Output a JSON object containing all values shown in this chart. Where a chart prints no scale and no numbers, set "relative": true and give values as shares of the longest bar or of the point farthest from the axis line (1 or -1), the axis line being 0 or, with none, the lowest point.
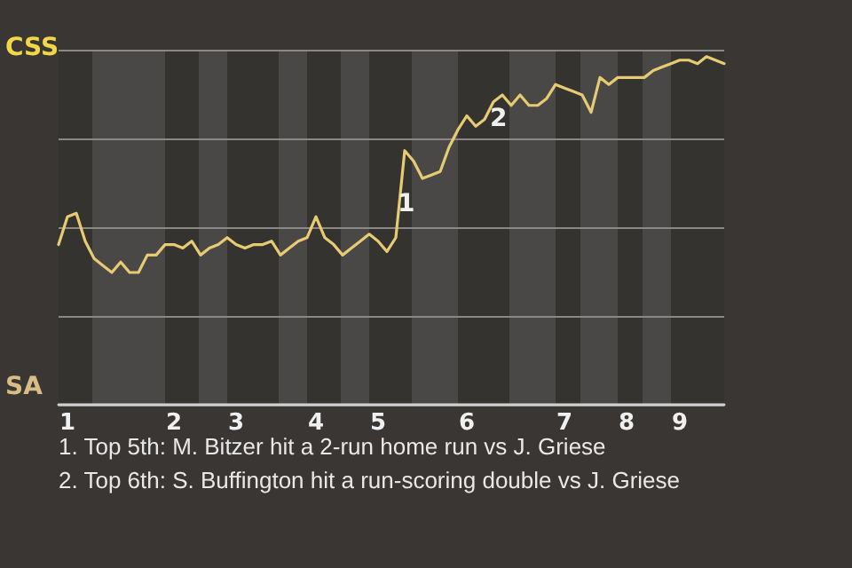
{
  "chart_data": {
    "type": "line",
    "relative": true,
    "categories": [
      null,
      "1",
      null,
      null,
      null,
      null,
      null,
      null,
      null,
      null,
      null,
      null,
      null,
      "2",
      null,
      null,
      null,
      null,
      null,
      null,
      "3",
      null,
      null,
      null,
      null,
      null,
      null,
      null,
      null,
      "4",
      null,
      null,
      null,
      null,
      null,
      null,
      "5",
      null,
      null,
      null,
      null,
      null,
      null,
      null,
      null,
      null,
      "6",
      null,
      null,
      null,
      null,
      null,
      null,
      null,
      null,
      null,
      null,
      "7",
      null,
      null,
      null,
      null,
      null,
      null,
      "8",
      null,
      null,
      null,
      null,
      null,
      "9",
      null,
      null,
      null,
      null,
      null
    ],
    "color": "#e6cb72",
    "values": [
      0.46,
      0.54,
      0.55,
      0.47,
      0.42,
      0.4,
      0.38,
      0.41,
      0.38,
      0.38,
      0.43,
      0.43,
      0.46,
      0.46,
      0.45,
      0.47,
      0.43,
      0.45,
      0.46,
      0.48,
      0.46,
      0.45,
      0.46,
      0.46,
      0.47,
      0.43,
      0.45,
      0.47,
      0.48,
      0.54,
      0.48,
      0.46,
      0.43,
      0.45,
      0.47,
      0.49,
      0.47,
      0.44,
      0.48,
      0.73,
      0.7,
      0.65,
      0.66,
      0.67,
      0.74,
      0.79,
      0.83,
      0.8,
      0.82,
      0.87,
      0.89,
      0.86,
      0.89,
      0.86,
      0.86,
      0.88,
      0.92,
      0.91,
      0.9,
      0.89,
      0.84,
      0.94,
      0.92,
      0.94,
      0.94,
      0.94,
      0.94,
      0.96,
      0.97,
      0.98,
      0.99,
      0.99,
      0.98,
      1.0,
      0.99,
      0.98
    ],
    "grid": "y",
    "annotations": [
      "CSS",
      "SA",
      "1",
      "2",
      "1. Top 5th: M. Bitzer hit a 2-run home run vs J. Griese",
      "2. Top 6th: S. Buffington hit a run-scoring double vs J. Griese"
    ]
  }
}
